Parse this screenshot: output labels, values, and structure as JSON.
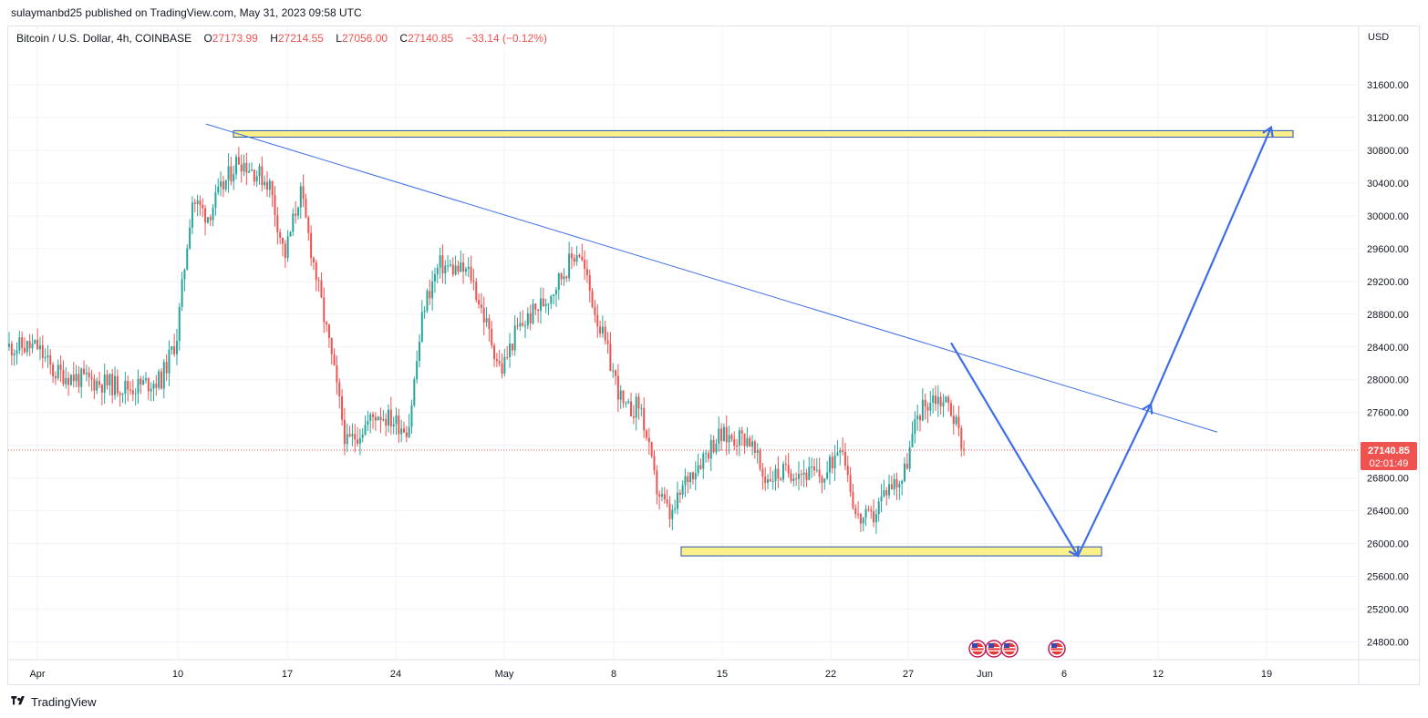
{
  "header": {
    "published": "sulaymanbd25 published on TradingView.com, May 31, 2023 09:58 UTC"
  },
  "legend": {
    "symbol": "Bitcoin / U.S. Dollar, 4h, COINBASE",
    "o_label": "O",
    "o_value": "27173.99",
    "h_label": "H",
    "h_value": "27214.55",
    "l_label": "L",
    "l_value": "27056.00",
    "c_label": "C",
    "c_value": "27140.85",
    "change": "−33.14 (−0.12%)"
  },
  "price_axis": {
    "currency": "USD",
    "ticks": [
      31600,
      31200,
      30800,
      30400,
      30000,
      29600,
      29200,
      28800,
      28400,
      28000,
      27600,
      27200,
      26800,
      26400,
      26000,
      25600,
      25200,
      24800
    ],
    "current_price": "27140.85",
    "countdown": "02:01:49"
  },
  "time_axis": {
    "labels": [
      "Apr",
      "10",
      "17",
      "24",
      "May",
      "8",
      "15",
      "22",
      "27",
      "Jun",
      "6",
      "12",
      "19"
    ]
  },
  "colors": {
    "up": "#26a69a",
    "down": "#ef5350",
    "trendline": "#3d6ee8",
    "zone_fill": "#fbf08a",
    "zone_border": "#2b4fb3",
    "price_label_bg": "#ef5350"
  },
  "chart_data": {
    "type": "candlestick",
    "symbol": "Bitcoin / U.S. Dollar",
    "interval": "4h",
    "ylim": [
      24600,
      31850
    ],
    "approx_close_path": [
      {
        "x": "Apr 1",
        "y": 28400
      },
      {
        "x": "Apr 2",
        "y": 28100
      },
      {
        "x": "Apr 4",
        "y": 28000
      },
      {
        "x": "Apr 7",
        "y": 27900
      },
      {
        "x": "Apr 9",
        "y": 28000
      },
      {
        "x": "Apr 10",
        "y": 28500
      },
      {
        "x": "Apr 11",
        "y": 30200
      },
      {
        "x": "Apr 12",
        "y": 30000
      },
      {
        "x": "Apr 14",
        "y": 30700
      },
      {
        "x": "Apr 16",
        "y": 30400
      },
      {
        "x": "Apr 17",
        "y": 29500
      },
      {
        "x": "Apr 18",
        "y": 30300
      },
      {
        "x": "Apr 20",
        "y": 28300
      },
      {
        "x": "Apr 21",
        "y": 27200
      },
      {
        "x": "Apr 23",
        "y": 27600
      },
      {
        "x": "Apr 25",
        "y": 27400
      },
      {
        "x": "Apr 26",
        "y": 28900
      },
      {
        "x": "Apr 27",
        "y": 29400
      },
      {
        "x": "Apr 29",
        "y": 29300
      },
      {
        "x": "May 1",
        "y": 28100
      },
      {
        "x": "May 2",
        "y": 28600
      },
      {
        "x": "May 4",
        "y": 29000
      },
      {
        "x": "May 6",
        "y": 29600
      },
      {
        "x": "May 7",
        "y": 28900
      },
      {
        "x": "May 9",
        "y": 27600
      },
      {
        "x": "May 10",
        "y": 27700
      },
      {
        "x": "May 11",
        "y": 26700
      },
      {
        "x": "May 12",
        "y": 26300
      },
      {
        "x": "May 13",
        "y": 26800
      },
      {
        "x": "May 15",
        "y": 27300
      },
      {
        "x": "May 17",
        "y": 27300
      },
      {
        "x": "May 18",
        "y": 26800
      },
      {
        "x": "May 20",
        "y": 26900
      },
      {
        "x": "May 22",
        "y": 26800
      },
      {
        "x": "May 23",
        "y": 27300
      },
      {
        "x": "May 24",
        "y": 26300
      },
      {
        "x": "May 25",
        "y": 26300
      },
      {
        "x": "May 26",
        "y": 26700
      },
      {
        "x": "May 27",
        "y": 26800
      },
      {
        "x": "May 28",
        "y": 27600
      },
      {
        "x": "May 29",
        "y": 27800
      },
      {
        "x": "May 30",
        "y": 27700
      },
      {
        "x": "May 31",
        "y": 27140.85
      }
    ],
    "annotations": {
      "resistance_zone": [
        30960,
        31040
      ],
      "support_zone": [
        25850,
        25960
      ],
      "trendline": [
        {
          "x": "Apr 12",
          "y": 31120
        },
        {
          "x": "Jun 15",
          "y": 27360
        }
      ],
      "projected_path": [
        {
          "x": "May 30",
          "y": 28450
        },
        {
          "x": "Jun 7",
          "y": 25850
        },
        {
          "x": "Jun 11",
          "y": 27700
        },
        {
          "x": "Jun 19",
          "y": 31080
        }
      ]
    }
  },
  "footer": {
    "brand": "TradingView"
  }
}
